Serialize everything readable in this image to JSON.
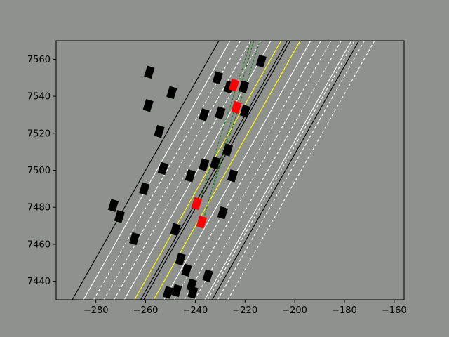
{
  "chart_data": {
    "type": "scatter",
    "title": "",
    "xlabel": "",
    "ylabel": "",
    "xlim": [
      -296,
      -156
    ],
    "ylim": [
      7430,
      7570
    ],
    "x_ticks": [
      -280,
      -260,
      -240,
      -220,
      -200,
      -180,
      -160
    ],
    "x_tick_labels": [
      "−280",
      "−260",
      "−240",
      "−220",
      "−200",
      "−180",
      "−160"
    ],
    "y_ticks": [
      7440,
      7460,
      7480,
      7500,
      7520,
      7540,
      7560
    ],
    "y_tick_labels": [
      "7440",
      "7460",
      "7480",
      "7500",
      "7520",
      "7540",
      "7560"
    ],
    "grid": false,
    "road": {
      "slope_dx_per_dy": 0.4215,
      "lines_at_y7430": [
        {
          "x": -289.5,
          "style": "solid",
          "color": "#000000"
        },
        {
          "x": -285.0,
          "style": "solid",
          "color": "#ffffff"
        },
        {
          "x": -280.9,
          "style": "dashed",
          "color": "#ffffff"
        },
        {
          "x": -276.8,
          "style": "dashed",
          "color": "#ffffff"
        },
        {
          "x": -272.7,
          "style": "dashed",
          "color": "#ffffff"
        },
        {
          "x": -268.6,
          "style": "solid",
          "color": "#ffffff"
        },
        {
          "x": -264.5,
          "style": "solid",
          "color": "#ffff00"
        },
        {
          "x": -262.0,
          "style": "solid",
          "color": "#000000"
        },
        {
          "x": -260.8,
          "style": "solid",
          "color": "#000000"
        },
        {
          "x": -256.8,
          "style": "solid",
          "color": "#ffff00"
        },
        {
          "x": -252.6,
          "style": "solid",
          "color": "#ffffff"
        },
        {
          "x": -248.5,
          "style": "dashed",
          "color": "#ffffff"
        },
        {
          "x": -244.4,
          "style": "dashed",
          "color": "#ffffff"
        },
        {
          "x": -240.3,
          "style": "dashed",
          "color": "#ffffff"
        },
        {
          "x": -236.2,
          "style": "solid",
          "color": "#ffffff"
        },
        {
          "x": -233.2,
          "style": "solid",
          "color": "#000000"
        }
      ],
      "right_lines_at_y7430": [
        {
          "x": -235.0,
          "style": "dashed",
          "color": "#ffffff"
        },
        {
          "x": -231.0,
          "style": "dashed",
          "color": "#ffffff"
        },
        {
          "x": -226.9,
          "style": "dashed",
          "color": "#ffffff"
        }
      ]
    },
    "guide_paths": [
      {
        "from": [
          -239,
          7480
        ],
        "to": [
          -217.5,
          7570
        ],
        "color": "#1a7a1a",
        "style": "dashed"
      },
      {
        "from": [
          -237,
          7472
        ],
        "to": [
          -216.5,
          7570
        ],
        "color": "#1a7a1a",
        "style": "dashed"
      },
      {
        "from": [
          -233,
          7490
        ],
        "to": [
          -214.0,
          7570
        ],
        "color": "#1a7a1a",
        "style": "dashed"
      }
    ],
    "vehicles_black": [
      [
        -258.5,
        7553
      ],
      [
        -249.5,
        7542
      ],
      [
        -259,
        7535
      ],
      [
        -254.5,
        7521
      ],
      [
        -253,
        7501
      ],
      [
        -260.5,
        7490
      ],
      [
        -273,
        7481
      ],
      [
        -270.5,
        7475
      ],
      [
        -264.5,
        7463
      ],
      [
        -248,
        7468
      ],
      [
        -242,
        7497
      ],
      [
        -236.5,
        7503
      ],
      [
        -232,
        7504
      ],
      [
        -225,
        7497
      ],
      [
        -227,
        7511
      ],
      [
        -236.5,
        7530
      ],
      [
        -230,
        7531
      ],
      [
        -220,
        7532
      ],
      [
        -226.5,
        7545
      ],
      [
        -220.5,
        7545
      ],
      [
        -231,
        7550
      ],
      [
        -213.5,
        7559
      ],
      [
        -229,
        7477
      ],
      [
        -246,
        7452
      ],
      [
        -243.5,
        7446
      ],
      [
        -235,
        7443
      ],
      [
        -241.5,
        7438
      ],
      [
        -241,
        7434
      ],
      [
        -247.5,
        7435
      ],
      [
        -251,
        7434
      ]
    ],
    "vehicles_red": [
      [
        -239.5,
        7482
      ],
      [
        -237.5,
        7472
      ],
      [
        -223.5,
        7534
      ],
      [
        -224.5,
        7546
      ]
    ]
  }
}
